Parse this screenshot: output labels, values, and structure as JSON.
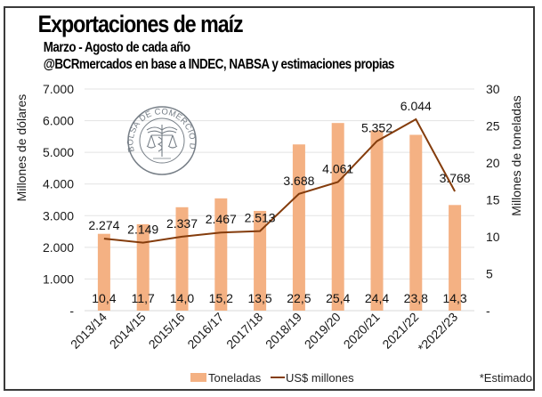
{
  "chart_data": {
    "type": "bar+line",
    "title": "Exportaciones de maíz",
    "subtitle": "Marzo - Agosto de cada año",
    "source": "@BCRmercados en base a INDEC, NABSA y estimaciones propias",
    "categories": [
      "2013/14",
      "2014/15",
      "2015/16",
      "2016/17",
      "2017/18",
      "2018/19",
      "2019/20",
      "2020/21",
      "2021/22",
      "*2022/23"
    ],
    "series": [
      {
        "name": "Toneladas",
        "type": "bar",
        "axis": "right",
        "color": "#F4B183",
        "values": [
          10.4,
          11.7,
          14.0,
          15.2,
          13.5,
          22.5,
          25.4,
          24.4,
          23.8,
          14.3
        ],
        "labels": [
          "10,4",
          "11,7",
          "14,0",
          "15,2",
          "13,5",
          "22,5",
          "25,4",
          "24,4",
          "23,8",
          "14,3"
        ]
      },
      {
        "name": "US$ millones",
        "type": "line",
        "axis": "left",
        "color": "#843C0C",
        "values": [
          2274,
          2149,
          2337,
          2467,
          2513,
          3688,
          4061,
          5352,
          6044,
          3768
        ],
        "labels": [
          "2.274",
          "2.149",
          "2.337",
          "2.467",
          "2.513",
          "3.688",
          "4.061",
          "5.352",
          "6.044",
          "3.768"
        ]
      }
    ],
    "ylabel_left": "Millones de dólares",
    "ylabel_right": "Millones de toneladas",
    "ylim_left": [
      0,
      7000
    ],
    "ylim_right": [
      0,
      30
    ],
    "yticks_left": [
      0,
      1000,
      2000,
      3000,
      4000,
      5000,
      6000,
      7000
    ],
    "yticks_left_labels": [
      "-",
      "1.000",
      "2.000",
      "3.000",
      "4.000",
      "5.000",
      "6.000",
      "7.000"
    ],
    "yticks_right": [
      0,
      5,
      10,
      15,
      20,
      25,
      30
    ],
    "yticks_right_labels": [
      "-",
      "5",
      "10",
      "15",
      "20",
      "25",
      "30"
    ],
    "grid": true,
    "legend": {
      "position": "bottom",
      "items": [
        "Toneladas",
        "US$ millones"
      ]
    },
    "footnote": "*Estimado",
    "watermark": "BOLSA DE COMERCIO DE ROSARIO",
    "gridline_color": "#e3e3e3"
  }
}
